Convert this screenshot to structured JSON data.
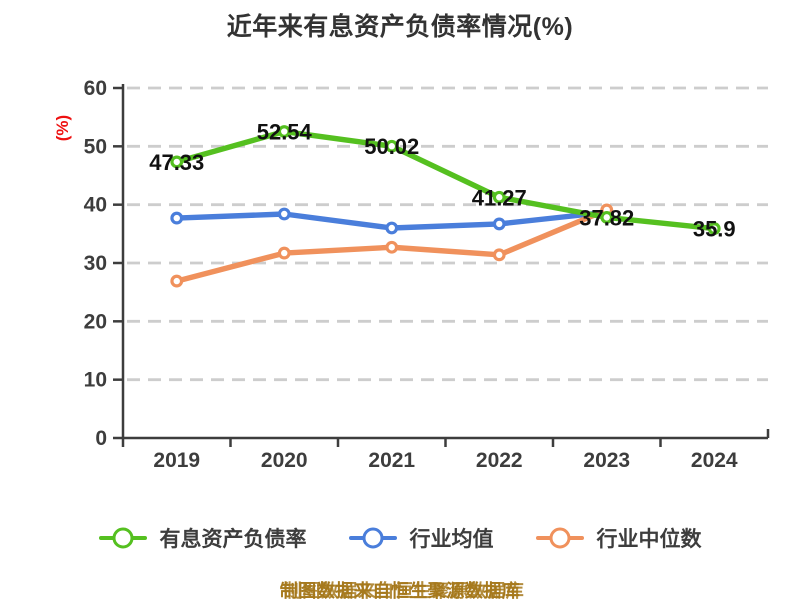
{
  "title": "近年来有息资产负债率情况(%)",
  "footer_note": "制图数据来自恒生聚源数据库",
  "colors": {
    "title": "#333333",
    "footer": "#a6791d",
    "background": "#ffffff"
  },
  "chart_data": {
    "type": "line",
    "title": "近年来有息资产负债率情况(%)",
    "xlabel": "",
    "ylabel": "(%)",
    "categories": [
      "2019",
      "2020",
      "2021",
      "2022",
      "2023",
      "2024"
    ],
    "ylim": [
      0,
      60
    ],
    "y_ticks": [
      0,
      10,
      20,
      30,
      40,
      50,
      60
    ],
    "grid": "horizontal-dashed",
    "legend_position": "bottom",
    "series": [
      {
        "name": "有息资产负债率",
        "color": "#55c020",
        "values": [
          47.33,
          52.54,
          50.02,
          41.27,
          37.82,
          35.9
        ],
        "point_labels": [
          "47.33",
          "52.54",
          "50.02",
          "41.27",
          "37.82",
          "35.9"
        ]
      },
      {
        "name": "行业均值",
        "color": "#4a7edb",
        "values": [
          37.7,
          38.4,
          36.0,
          36.7,
          38.7
        ],
        "point_labels": []
      },
      {
        "name": "行业中位数",
        "color": "#f0915c",
        "values": [
          26.9,
          31.7,
          32.7,
          31.4,
          39.1
        ],
        "point_labels": []
      }
    ],
    "style": {
      "axis_color": "#3d3d3d",
      "grid_color": "#cdcdcd",
      "tick_label_color": "#3d3d3d",
      "data_label_color": "#111111",
      "ylabel_color": "#ee1111",
      "marker_fill": "#ffffff"
    }
  }
}
